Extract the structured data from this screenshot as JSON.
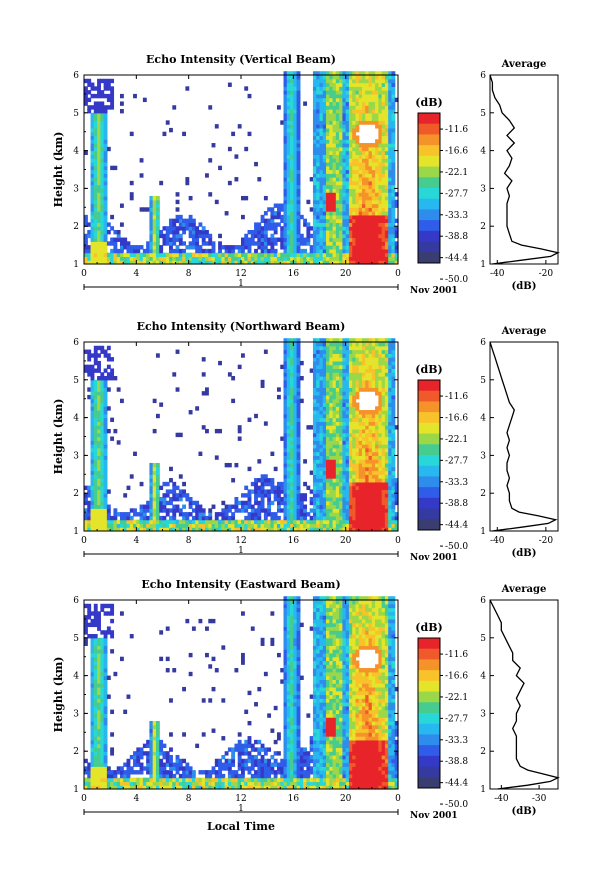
{
  "figure": {
    "time_ticks": [
      "0",
      "4",
      "8",
      "12",
      "16",
      "20",
      "0"
    ],
    "date_label": "Nov 2001",
    "day_marker": "1",
    "xlabel": "Local Time"
  },
  "colorbar": {
    "unit": "(dB)",
    "levels": [
      "-11.6",
      "-16.6",
      "-22.1",
      "-27.7",
      "-33.3",
      "-38.8",
      "-44.4",
      "-50.0"
    ],
    "colors": [
      "#e8242b",
      "#f0592a",
      "#f6922a",
      "#f8c32a",
      "#e4e42a",
      "#9ad84a",
      "#46cc8e",
      "#28d8d8",
      "#28b8f0",
      "#2e8cec",
      "#2f5ce8",
      "#3539c8",
      "#353aa0",
      "#393d70"
    ]
  },
  "chart_data": [
    {
      "type": "heatmap",
      "title": "Echo Intensity (Vertical Beam)",
      "ylabel": "Height (km)",
      "xlim": [
        0,
        24
      ],
      "ylim": [
        1,
        6
      ],
      "x_ticks": [
        0,
        4,
        8,
        12,
        16,
        20,
        24
      ],
      "y_ticks": [
        1,
        2,
        3,
        4,
        5,
        6
      ],
      "colorbar_range_db": [
        -50.0,
        -11.6
      ],
      "profile": {
        "title": "Average",
        "xlabel": "(dB)",
        "x_ticks": [
          -40,
          -20
        ],
        "xlim": [
          -43,
          -15
        ],
        "ylim": [
          1,
          6
        ],
        "height": [
          1.0,
          1.1,
          1.2,
          1.3,
          1.4,
          1.5,
          1.6,
          1.8,
          2.0,
          2.2,
          2.4,
          2.6,
          2.8,
          3.0,
          3.2,
          3.4,
          3.6,
          3.8,
          4.0,
          4.2,
          4.4,
          4.6,
          4.8,
          5.0,
          5.2,
          5.4,
          5.6,
          5.8,
          6.0
        ],
        "value_db": [
          -42,
          -30,
          -18,
          -15,
          -22,
          -30,
          -34,
          -35,
          -36,
          -36,
          -36,
          -36,
          -35,
          -36,
          -34,
          -37,
          -35,
          -34,
          -36,
          -33,
          -36,
          -33,
          -35,
          -38,
          -39,
          -41,
          -42,
          -42,
          -43
        ]
      }
    },
    {
      "type": "heatmap",
      "title": "Echo Intensity (Northward Beam)",
      "ylabel": "Height (km)",
      "xlim": [
        0,
        24
      ],
      "ylim": [
        1,
        6
      ],
      "x_ticks": [
        0,
        4,
        8,
        12,
        16,
        20,
        24
      ],
      "y_ticks": [
        1,
        2,
        3,
        4,
        5,
        6
      ],
      "colorbar_range_db": [
        -50.0,
        -11.6
      ],
      "profile": {
        "title": "Average",
        "xlabel": "(dB)",
        "x_ticks": [
          -40,
          -20
        ],
        "xlim": [
          -43,
          -15
        ],
        "ylim": [
          1,
          6
        ],
        "height": [
          1.0,
          1.1,
          1.2,
          1.3,
          1.4,
          1.5,
          1.6,
          1.8,
          2.0,
          2.2,
          2.4,
          2.6,
          2.8,
          3.0,
          3.2,
          3.4,
          3.6,
          3.8,
          4.0,
          4.2,
          4.4,
          4.6,
          4.8,
          5.0,
          5.2,
          5.4,
          5.6,
          5.8,
          6.0
        ],
        "value_db": [
          -42,
          -30,
          -19,
          -16,
          -23,
          -31,
          -34,
          -35,
          -35,
          -36,
          -35,
          -36,
          -36,
          -35,
          -36,
          -35,
          -36,
          -35,
          -34,
          -33,
          -35,
          -36,
          -37,
          -38,
          -39,
          -40,
          -41,
          -42,
          -43
        ]
      }
    },
    {
      "type": "heatmap",
      "title": "Echo Intensity (Eastward Beam)",
      "ylabel": "Height (km)",
      "xlabel": "Local Time",
      "xlim": [
        0,
        24
      ],
      "ylim": [
        1,
        6
      ],
      "x_ticks": [
        0,
        4,
        8,
        12,
        16,
        20,
        24
      ],
      "y_ticks": [
        1,
        2,
        3,
        4,
        5,
        6
      ],
      "colorbar_range_db": [
        -50.0,
        -11.6
      ],
      "profile": {
        "title": "Average",
        "xlabel": "(dB)",
        "x_ticks": [
          -40,
          -30
        ],
        "xlim": [
          -43,
          -25
        ],
        "ylim": [
          1,
          6
        ],
        "height": [
          1.0,
          1.1,
          1.2,
          1.3,
          1.4,
          1.5,
          1.6,
          1.8,
          2.0,
          2.2,
          2.4,
          2.6,
          2.8,
          3.0,
          3.2,
          3.4,
          3.6,
          3.8,
          4.0,
          4.2,
          4.4,
          4.6,
          4.8,
          5.0,
          5.2,
          5.4,
          5.6,
          5.8,
          6.0
        ],
        "value_db": [
          -41,
          -33,
          -27,
          -25,
          -29,
          -33,
          -35,
          -36,
          -36,
          -36,
          -36,
          -37,
          -36,
          -36,
          -35,
          -36,
          -35,
          -34,
          -36,
          -35,
          -37,
          -37,
          -38,
          -39,
          -40,
          -40,
          -41,
          -42,
          -43
        ]
      }
    }
  ]
}
